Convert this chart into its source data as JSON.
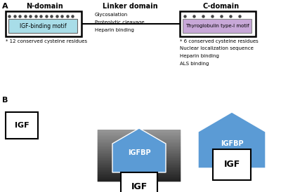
{
  "bg_color": "#ffffff",
  "panel_a_label": "A",
  "panel_b_label": "B",
  "n_domain_title": "N-domain",
  "linker_domain_title": "Linker domain",
  "c_domain_title": "C-domain",
  "igf_binding_motif": "IGF-binding motif",
  "thyroglobulin_motif": "Thyroglobulin type-I motif",
  "n_domain_note": "* 12 conserved cysteine residues",
  "linker_notes": [
    "Glycosalation",
    "Proteolytic cleavage",
    "Heparin binding"
  ],
  "c_domain_notes": [
    "* 6 conserved cysteine residues",
    "Nuclear localization sequence",
    "Heparin binding",
    "ALS binding"
  ],
  "igf_box_color": "#a8dde8",
  "thyro_box_color": "#c8a8d8",
  "als_color": "#666666",
  "als_color_light": "#aaaaaa",
  "igfbp_color": "#5b9bd5",
  "dots_color": "#444444"
}
